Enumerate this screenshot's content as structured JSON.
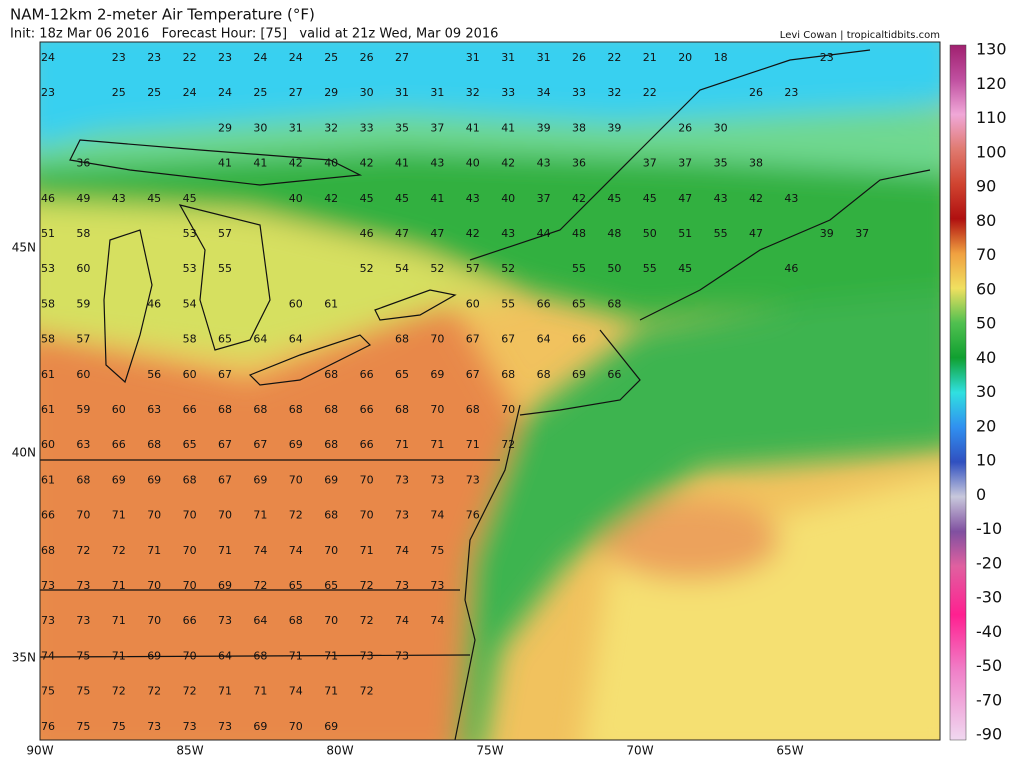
{
  "header": {
    "title": "NAM-12km 2-meter Air Temperature (°F)",
    "subtitle": "Init: 18z Mar 06 2016   Forecast Hour: [75]   valid at 21z Wed, Mar 09 2016",
    "credit": "Levi Cowan | tropicaltidbits.com"
  },
  "colorbar": {
    "labels": [
      130,
      120,
      110,
      100,
      90,
      80,
      70,
      60,
      50,
      40,
      30,
      20,
      10,
      0,
      -10,
      -20,
      -30,
      -40,
      -50,
      -70,
      -90
    ]
  },
  "axes": {
    "lon_labels": [
      "90W",
      "85W",
      "80W",
      "75W",
      "70W",
      "65W"
    ],
    "lat_labels": [
      "45N",
      "40N",
      "35N"
    ]
  },
  "stations": {
    "rows": [
      [
        24,
        null,
        23,
        23,
        22,
        23,
        24,
        24,
        25,
        26,
        27,
        null,
        31,
        31,
        31,
        26,
        22,
        21,
        20,
        18,
        null,
        null,
        23
      ],
      [
        23,
        null,
        25,
        25,
        24,
        24,
        25,
        27,
        29,
        30,
        31,
        31,
        32,
        33,
        34,
        33,
        32,
        22,
        null,
        null,
        26,
        23
      ],
      [
        null,
        null,
        null,
        null,
        null,
        29,
        30,
        31,
        32,
        33,
        35,
        37,
        41,
        41,
        39,
        38,
        39,
        null,
        26,
        30
      ],
      [
        null,
        36,
        null,
        null,
        null,
        41,
        41,
        42,
        40,
        42,
        41,
        43,
        40,
        42,
        43,
        36,
        null,
        37,
        37,
        35,
        38
      ],
      [
        46,
        49,
        43,
        45,
        45,
        null,
        null,
        40,
        42,
        45,
        45,
        41,
        43,
        40,
        37,
        42,
        45,
        45,
        47,
        43,
        42,
        43
      ],
      [
        51,
        58,
        null,
        null,
        53,
        57,
        null,
        null,
        null,
        46,
        47,
        47,
        42,
        43,
        44,
        48,
        48,
        50,
        51,
        55,
        47,
        null,
        39,
        37
      ],
      [
        53,
        60,
        null,
        null,
        53,
        55,
        null,
        null,
        null,
        52,
        54,
        52,
        57,
        52,
        null,
        55,
        50,
        55,
        45,
        null,
        null,
        46
      ],
      [
        58,
        59,
        null,
        46,
        54,
        null,
        null,
        60,
        61,
        null,
        null,
        null,
        60,
        55,
        66,
        65,
        68
      ],
      [
        58,
        57,
        null,
        null,
        58,
        65,
        64,
        64,
        null,
        null,
        68,
        70,
        67,
        67,
        64,
        66
      ],
      [
        61,
        60,
        null,
        56,
        60,
        67,
        null,
        null,
        68,
        66,
        65,
        69,
        67,
        68,
        68,
        69,
        66
      ],
      [
        61,
        59,
        60,
        63,
        66,
        68,
        68,
        68,
        68,
        66,
        68,
        70,
        68,
        70
      ],
      [
        60,
        63,
        66,
        68,
        65,
        67,
        67,
        69,
        68,
        66,
        71,
        71,
        71,
        72
      ],
      [
        61,
        68,
        69,
        69,
        68,
        67,
        69,
        70,
        69,
        70,
        73,
        73,
        73
      ],
      [
        66,
        70,
        71,
        70,
        70,
        70,
        71,
        72,
        68,
        70,
        73,
        74,
        76
      ],
      [
        68,
        72,
        72,
        71,
        70,
        71,
        74,
        74,
        70,
        71,
        74,
        75
      ],
      [
        73,
        73,
        71,
        70,
        70,
        69,
        72,
        65,
        65,
        72,
        73,
        73
      ],
      [
        73,
        73,
        71,
        70,
        66,
        73,
        64,
        68,
        70,
        72,
        74,
        74
      ],
      [
        74,
        75,
        71,
        69,
        70,
        64,
        68,
        71,
        71,
        73,
        73
      ],
      [
        75,
        75,
        72,
        72,
        72,
        71,
        71,
        74,
        71,
        72
      ],
      [
        76,
        75,
        75,
        73,
        73,
        73,
        69,
        70,
        69
      ]
    ]
  }
}
